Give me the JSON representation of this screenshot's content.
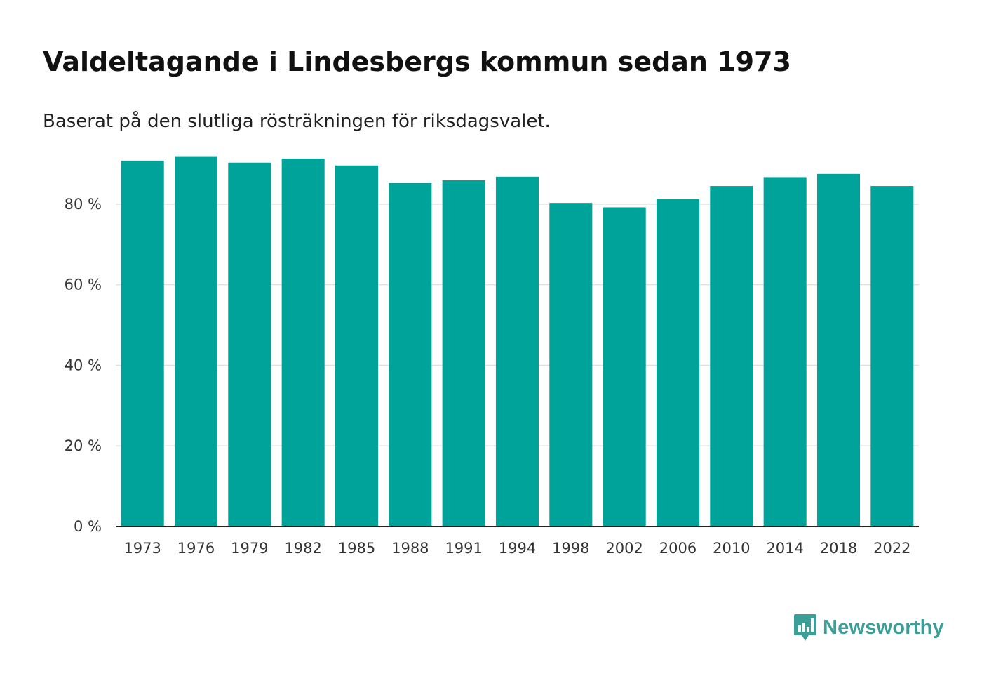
{
  "title": "Valdeltagande i Lindesbergs kommun sedan 1973",
  "subtitle": "Baserat på den slutliga rösträkningen för riksdagsvalet.",
  "brand": {
    "name": "Newsworthy",
    "color": "#3b9e97"
  },
  "colors": {
    "bar": "#00a39a",
    "grid": "#e0e0e0",
    "axis": "#222222"
  },
  "chart_data": {
    "type": "bar",
    "title": "Valdeltagande i Lindesbergs kommun sedan 1973",
    "subtitle": "Baserat på den slutliga rösträkningen för riksdagsvalet.",
    "xlabel": "",
    "ylabel": "",
    "ylim": [
      0,
      92
    ],
    "yticks": [
      0,
      20,
      40,
      60,
      80
    ],
    "ytick_labels": [
      "0 %",
      "20 %",
      "40 %",
      "60 %",
      "80 %"
    ],
    "grid": true,
    "categories": [
      "1973",
      "1976",
      "1979",
      "1982",
      "1985",
      "1988",
      "1991",
      "1994",
      "1998",
      "2002",
      "2006",
      "2010",
      "2014",
      "2018",
      "2022"
    ],
    "values": [
      90.8,
      91.9,
      90.3,
      91.3,
      89.6,
      85.3,
      85.9,
      86.8,
      80.3,
      79.2,
      81.2,
      84.5,
      86.7,
      87.5,
      84.5
    ]
  }
}
